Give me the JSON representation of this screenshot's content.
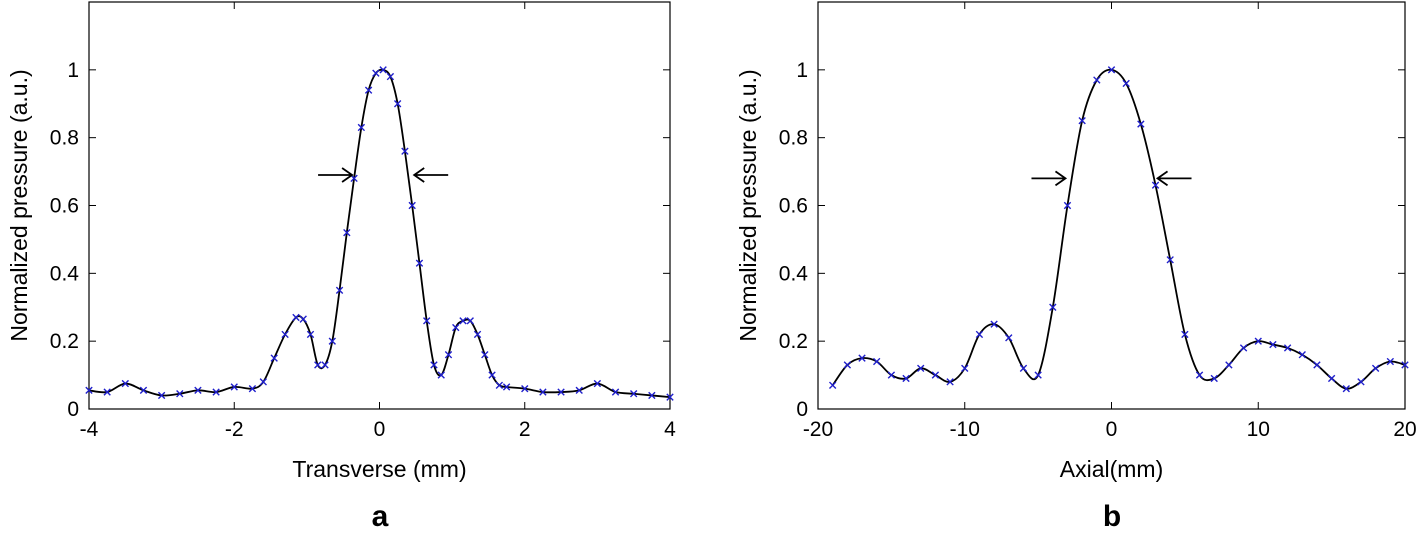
{
  "chart_data": [
    {
      "panel": "a",
      "type": "line",
      "xlabel": "Transverse (mm)",
      "ylabel": "Normalized pressure (a.u.)",
      "xlim": [
        -4,
        4
      ],
      "ylim": [
        0,
        1.2
      ],
      "xticks": [
        -4,
        -2,
        0,
        2,
        4
      ],
      "yticks": [
        0,
        0.2,
        0.4,
        0.6,
        0.8,
        1
      ],
      "grid": false,
      "line_color": "#000000",
      "marker_color": "#1f1fcc",
      "marker": "x",
      "fwhm_arrows_at_y": 0.69,
      "fwhm_arrows_x": [
        -0.35,
        0.45
      ],
      "series": [
        {
          "x": [
            -4.0,
            -3.75,
            -3.5,
            -3.25,
            -3.0,
            -2.75,
            -2.5,
            -2.25,
            -2.0,
            -1.75,
            -1.6,
            -1.45,
            -1.3,
            -1.15,
            -1.05,
            -0.95,
            -0.85,
            -0.75,
            -0.65,
            -0.55,
            -0.45,
            -0.35,
            -0.25,
            -0.15,
            -0.05,
            0.05,
            0.15,
            0.25,
            0.35,
            0.45,
            0.55,
            0.65,
            0.75,
            0.85,
            0.95,
            1.05,
            1.15,
            1.25,
            1.35,
            1.45,
            1.55,
            1.65,
            1.75,
            2.0,
            2.25,
            2.5,
            2.75,
            3.0,
            3.25,
            3.5,
            3.75,
            4.0
          ],
          "y": [
            0.055,
            0.05,
            0.075,
            0.055,
            0.04,
            0.045,
            0.055,
            0.05,
            0.065,
            0.06,
            0.08,
            0.15,
            0.22,
            0.27,
            0.265,
            0.22,
            0.13,
            0.13,
            0.2,
            0.35,
            0.52,
            0.68,
            0.83,
            0.94,
            0.99,
            1.0,
            0.98,
            0.9,
            0.76,
            0.6,
            0.43,
            0.26,
            0.13,
            0.1,
            0.16,
            0.24,
            0.26,
            0.26,
            0.22,
            0.16,
            0.1,
            0.07,
            0.065,
            0.06,
            0.05,
            0.05,
            0.055,
            0.075,
            0.05,
            0.045,
            0.04,
            0.035
          ]
        }
      ]
    },
    {
      "panel": "b",
      "type": "line",
      "xlabel": "Axial(mm)",
      "ylabel": "Normalized pressure (a.u.)",
      "xlim": [
        -20,
        20
      ],
      "ylim": [
        0,
        1.2
      ],
      "xticks": [
        -20,
        -10,
        0,
        10,
        20
      ],
      "yticks": [
        0,
        0.2,
        0.4,
        0.6,
        0.8,
        1
      ],
      "grid": false,
      "line_color": "#000000",
      "marker_color": "#1f1fcc",
      "marker": "x",
      "fwhm_arrows_at_y": 0.68,
      "fwhm_arrows_x": [
        -3,
        3
      ],
      "series": [
        {
          "x": [
            -19,
            -18,
            -17,
            -16,
            -15,
            -14,
            -13,
            -12,
            -11,
            -10,
            -9,
            -8,
            -7,
            -6,
            -5,
            -4,
            -3,
            -2,
            -1,
            0,
            1,
            2,
            3,
            4,
            5,
            6,
            7,
            8,
            9,
            10,
            11,
            12,
            13,
            14,
            15,
            16,
            17,
            18,
            19,
            20
          ],
          "y": [
            0.07,
            0.13,
            0.15,
            0.14,
            0.1,
            0.09,
            0.12,
            0.1,
            0.08,
            0.12,
            0.22,
            0.25,
            0.21,
            0.12,
            0.1,
            0.3,
            0.6,
            0.85,
            0.97,
            1.0,
            0.96,
            0.84,
            0.66,
            0.44,
            0.22,
            0.1,
            0.09,
            0.13,
            0.18,
            0.2,
            0.19,
            0.18,
            0.16,
            0.13,
            0.09,
            0.06,
            0.08,
            0.12,
            0.14,
            0.13
          ]
        }
      ]
    }
  ]
}
